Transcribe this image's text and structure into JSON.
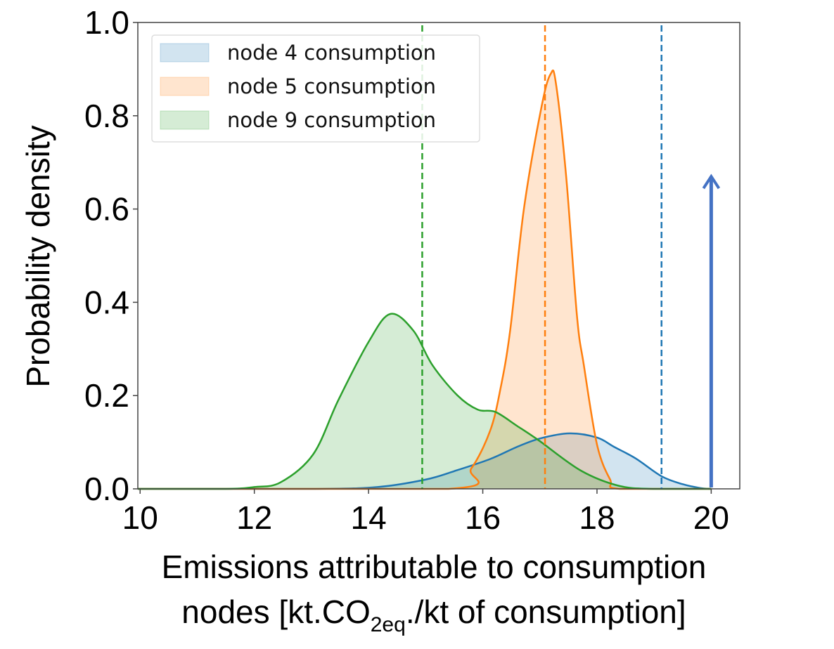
{
  "chart_data": {
    "type": "area",
    "title": "",
    "xlabel_line1": "Emissions attributable to consumption",
    "xlabel_line2_pre": "nodes [kt.CO",
    "xlabel_line2_sub": "2eq",
    "xlabel_line2_post": "./kt of consumption]",
    "ylabel": "Probability density",
    "xlim": [
      9.96,
      20.5
    ],
    "ylim": [
      0,
      1
    ],
    "xticks": [
      10,
      12,
      14,
      16,
      18,
      20
    ],
    "xtick_labels": [
      "10",
      "12",
      "14",
      "16",
      "18",
      "20"
    ],
    "yticks": [
      0,
      0.2,
      0.4,
      0.6,
      0.8,
      1.0
    ],
    "ytick_labels": [
      "0.0",
      "0.2",
      "0.4",
      "0.6",
      "0.8",
      "1.0"
    ],
    "legend_position": "top-left",
    "series": [
      {
        "name": "node 4 consumption",
        "color": "#1f77b4",
        "mean_line": 19.13,
        "x": [
          9.96,
          13.0,
          14.16,
          15.0,
          15.5,
          16.13,
          16.6,
          17.0,
          17.52,
          18.0,
          18.3,
          18.68,
          19.13,
          19.5,
          19.8,
          20.0
        ],
        "y": [
          0,
          0,
          0.004,
          0.02,
          0.038,
          0.064,
          0.09,
          0.108,
          0.119,
          0.11,
          0.09,
          0.065,
          0.027,
          0.01,
          0.002,
          0
        ]
      },
      {
        "name": "node 5 consumption",
        "color": "#ff7f0e",
        "mean_line": 17.09,
        "x": [
          9.96,
          15.4,
          15.8,
          16.13,
          16.31,
          16.48,
          16.72,
          17.03,
          17.19,
          17.28,
          17.46,
          17.65,
          17.77,
          18.0,
          18.23,
          18.4,
          20.0
        ],
        "y": [
          0,
          0,
          0.044,
          0.125,
          0.215,
          0.34,
          0.6,
          0.82,
          0.89,
          0.87,
          0.67,
          0.37,
          0.265,
          0.095,
          0.02,
          0,
          0
        ]
      },
      {
        "name": "node 9 consumption",
        "color": "#2ca02c",
        "mean_line": 14.94,
        "x": [
          9.96,
          11.5,
          12.0,
          12.46,
          13.03,
          13.47,
          14.0,
          14.38,
          14.78,
          15.12,
          15.56,
          15.91,
          16.22,
          16.6,
          16.98,
          17.72,
          18.4,
          19.0,
          20.0
        ],
        "y": [
          0,
          0,
          0.004,
          0.014,
          0.074,
          0.19,
          0.315,
          0.375,
          0.34,
          0.265,
          0.2,
          0.17,
          0.165,
          0.135,
          0.104,
          0.039,
          0.006,
          0,
          0
        ]
      }
    ],
    "annotations": [
      {
        "type": "arrow",
        "x": 20,
        "y_from": 0,
        "y_to": 0.67,
        "color": "#4472c4"
      }
    ]
  }
}
